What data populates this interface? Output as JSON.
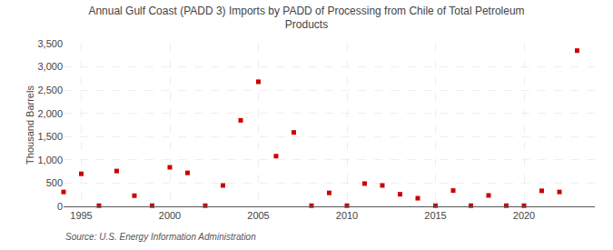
{
  "chart_data": {
    "type": "scatter",
    "title": "Annual Gulf Coast (PADD 3) Imports by PADD of Processing from Chile of Total Petroleum\nProducts",
    "ylabel": "Thousand Barrels",
    "annotations": [
      "Source: U.S. Energy Information Administration"
    ],
    "x": [
      1994,
      1995,
      1996,
      1997,
      1998,
      1999,
      2000,
      2001,
      2002,
      2003,
      2004,
      2005,
      2006,
      2007,
      2008,
      2009,
      2010,
      2011,
      2012,
      2013,
      2014,
      2015,
      2016,
      2017,
      2018,
      2019,
      2020,
      2021,
      2022,
      2023
    ],
    "values": [
      310,
      700,
      15,
      760,
      230,
      15,
      840,
      720,
      15,
      450,
      1850,
      2680,
      1080,
      1590,
      15,
      290,
      15,
      490,
      450,
      260,
      175,
      15,
      340,
      15,
      235,
      15,
      15,
      335,
      310,
      3350
    ],
    "color": "#cc0000",
    "marker": "square",
    "xlim": [
      1994,
      2024
    ],
    "ylim": [
      0,
      3500
    ],
    "xticks": [
      1995,
      2000,
      2005,
      2010,
      2015,
      2020
    ],
    "yticks": [
      0,
      500,
      {
        "value": 1000,
        "label": "1,000"
      },
      {
        "value": 1500,
        "label": "1,500"
      },
      {
        "value": 2000,
        "label": "2,000"
      },
      {
        "value": 2500,
        "label": "2,500"
      },
      {
        "value": 3000,
        "label": "3,000"
      },
      {
        "value": 3500,
        "label": "3,500"
      }
    ],
    "grid": true
  }
}
